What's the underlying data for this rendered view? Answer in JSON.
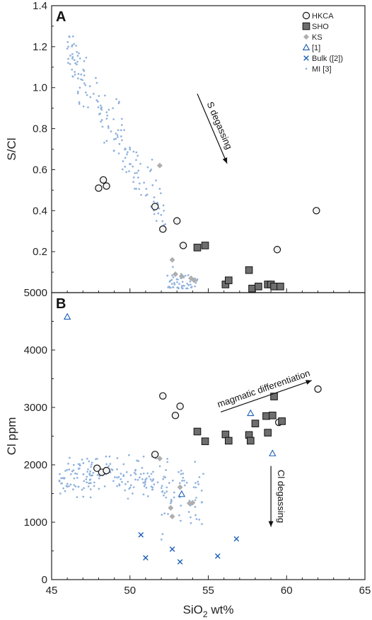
{
  "chart_data": [
    {
      "type": "scatter",
      "panel": "A",
      "xlabel": "SiO2 wt%",
      "ylabel": "S/Cl",
      "xlim": [
        45,
        65
      ],
      "ylim": [
        0,
        1.4
      ],
      "yticks": [
        "0.2",
        "0.4",
        "0.6",
        "0.8",
        "1.0",
        "1.2",
        "1.4"
      ],
      "legend_position": "top-right",
      "annotation": {
        "text": "S degassing",
        "from": [
          54.3,
          0.97
        ],
        "to": [
          56.2,
          0.63
        ]
      },
      "series": [
        {
          "name": "HKCA",
          "marker": "open-circle",
          "points": [
            [
              48.0,
              0.51
            ],
            [
              48.3,
              0.55
            ],
            [
              48.5,
              0.52
            ],
            [
              51.6,
              0.42
            ],
            [
              52.1,
              0.31
            ],
            [
              53.0,
              0.35
            ],
            [
              53.4,
              0.23
            ],
            [
              59.4,
              0.21
            ],
            [
              61.9,
              0.4
            ]
          ]
        },
        {
          "name": "SHO",
          "marker": "grey-square",
          "points": [
            [
              54.3,
              0.22
            ],
            [
              54.8,
              0.23
            ],
            [
              56.1,
              0.04
            ],
            [
              56.3,
              0.06
            ],
            [
              57.6,
              0.11
            ],
            [
              57.8,
              0.02
            ],
            [
              58.2,
              0.03
            ],
            [
              58.8,
              0.04
            ],
            [
              59.0,
              0.04
            ],
            [
              59.2,
              0.03
            ],
            [
              59.6,
              0.03
            ]
          ]
        },
        {
          "name": "KS",
          "marker": "grey-diamond",
          "points": [
            [
              51.9,
              0.62
            ],
            [
              52.7,
              0.16
            ],
            [
              52.9,
              0.09
            ],
            [
              53.3,
              0.08
            ],
            [
              53.9,
              0.07
            ],
            [
              54.1,
              0.06
            ]
          ]
        },
        {
          "name": "[1]",
          "marker": "open-triangle",
          "points": []
        },
        {
          "name": "Bulk ([2])",
          "marker": "x-cross",
          "points": []
        },
        {
          "name": "MI [3]",
          "marker": "small-dot",
          "points": [],
          "note": "dense cloud of ~200 melt inclusion analyses between SiO2 45.5 and 55 wt%, S/Cl 0 to 1.25"
        }
      ]
    },
    {
      "type": "scatter",
      "panel": "B",
      "xlabel": "SiO2 wt%",
      "ylabel": "Cl ppm",
      "xlim": [
        45,
        65
      ],
      "ylim": [
        0,
        5000
      ],
      "xticks": [
        "45",
        "50",
        "55",
        "60",
        "65"
      ],
      "yticks": [
        "0",
        "1000",
        "2000",
        "3000",
        "4000",
        "5000"
      ],
      "annotations": [
        {
          "text": "magmatic differentiation",
          "from": [
            55.8,
            2920
          ],
          "to": [
            61.6,
            3470
          ]
        },
        {
          "text": "Cl degassing",
          "from": [
            59.0,
            1980
          ],
          "to": [
            59.0,
            920
          ]
        }
      ],
      "series": [
        {
          "name": "HKCA",
          "marker": "open-circle",
          "points": [
            [
              47.9,
              1940
            ],
            [
              48.2,
              1870
            ],
            [
              48.5,
              1900
            ],
            [
              51.6,
              2180
            ],
            [
              52.1,
              3200
            ],
            [
              52.9,
              2860
            ],
            [
              53.2,
              3020
            ],
            [
              59.5,
              2740
            ],
            [
              62.0,
              3320
            ]
          ]
        },
        {
          "name": "SHO",
          "marker": "grey-square",
          "points": [
            [
              54.3,
              2580
            ],
            [
              54.8,
              2410
            ],
            [
              56.1,
              2530
            ],
            [
              56.3,
              2420
            ],
            [
              57.6,
              2520
            ],
            [
              57.7,
              2420
            ],
            [
              58.0,
              2720
            ],
            [
              58.7,
              2850
            ],
            [
              58.8,
              2560
            ],
            [
              59.1,
              2860
            ],
            [
              59.2,
              3190
            ],
            [
              59.7,
              2760
            ]
          ]
        },
        {
          "name": "KS",
          "marker": "grey-diamond",
          "points": [
            [
              51.9,
              2110
            ],
            [
              52.6,
              1250
            ],
            [
              52.7,
              1100
            ],
            [
              53.2,
              1610
            ],
            [
              53.8,
              1330
            ],
            [
              54.0,
              1340
            ]
          ]
        },
        {
          "name": "[1]",
          "marker": "open-triangle",
          "points": [
            [
              46.0,
              4580
            ],
            [
              53.3,
              1490
            ],
            [
              57.7,
              2900
            ],
            [
              59.1,
              2200
            ]
          ]
        },
        {
          "name": "Bulk ([2])",
          "marker": "x-cross",
          "points": [
            [
              50.7,
              780
            ],
            [
              51.0,
              380
            ],
            [
              52.7,
              530
            ],
            [
              53.2,
              310
            ],
            [
              55.6,
              410
            ],
            [
              56.8,
              710
            ]
          ]
        },
        {
          "name": "MI [3]",
          "marker": "small-dot",
          "points": [],
          "note": "dense cloud of ~220 melt inclusion analyses between SiO2 45.3 and 55 wt%, Cl 150 to 2800 ppm"
        }
      ]
    }
  ]
}
